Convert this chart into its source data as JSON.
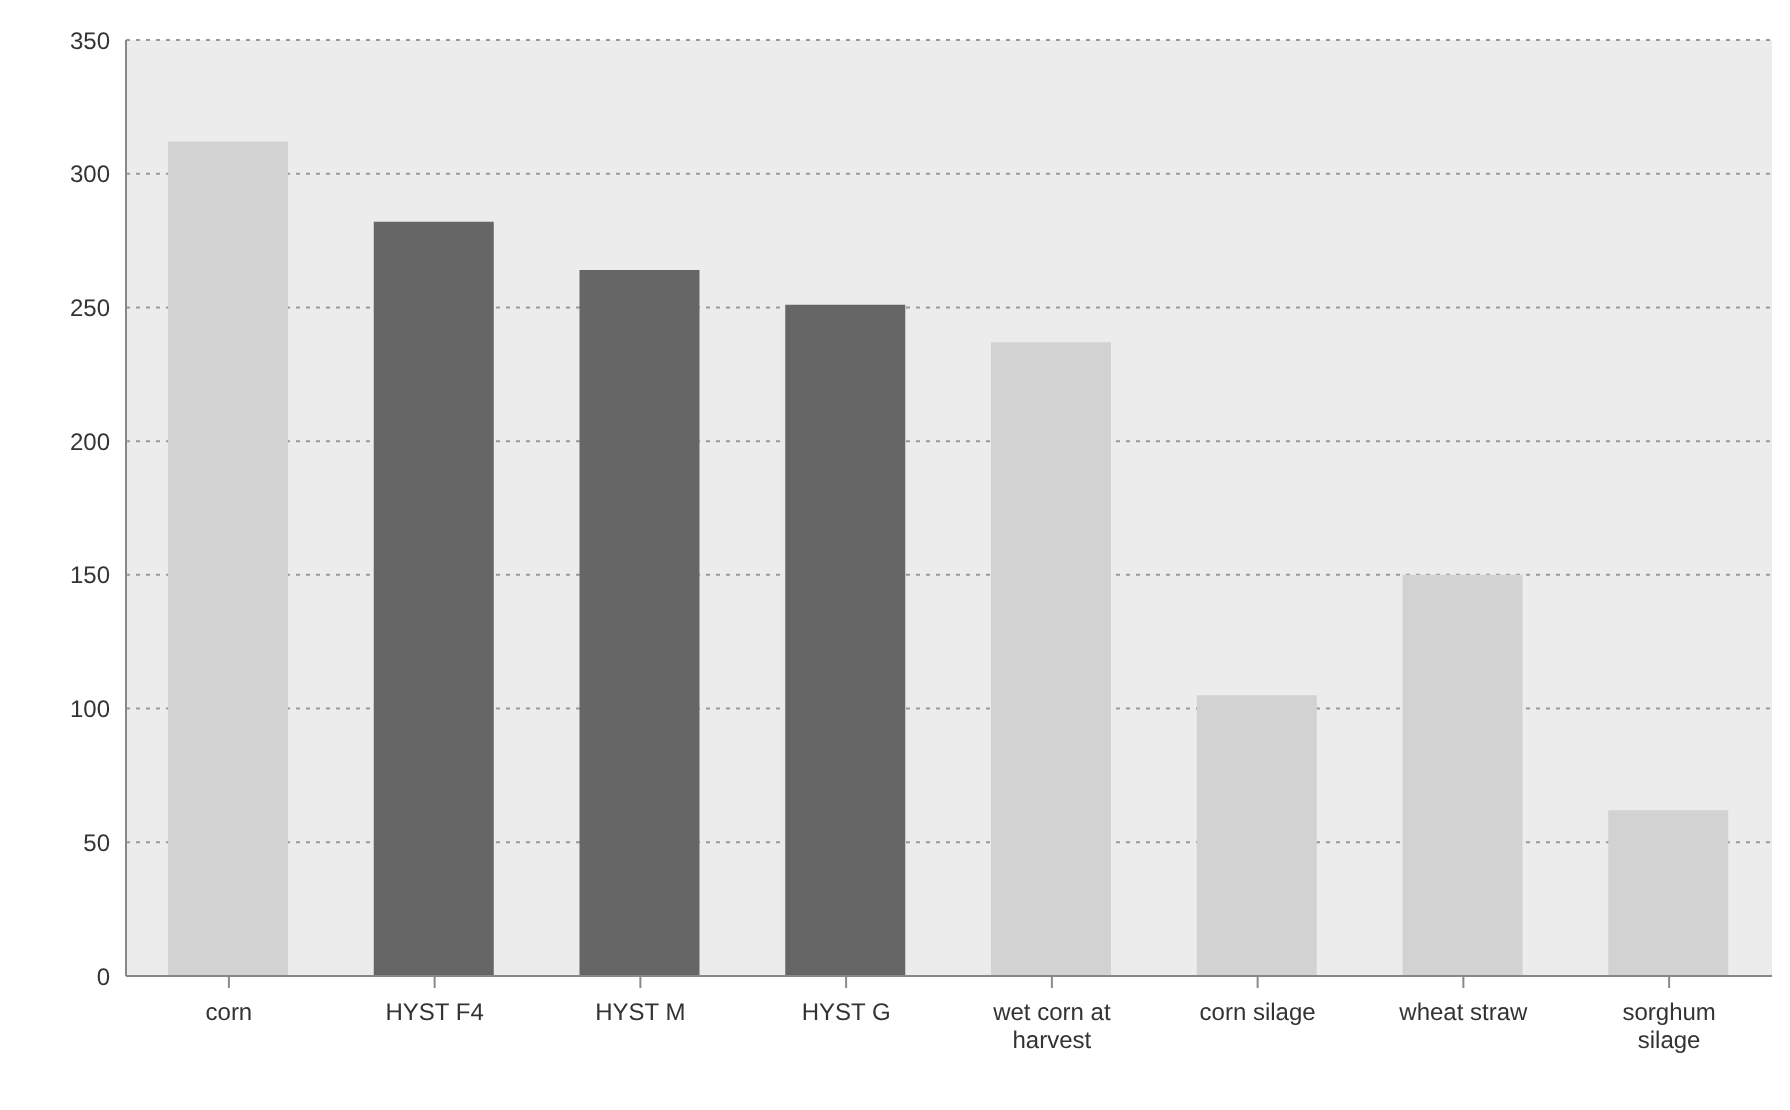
{
  "chart_data": {
    "type": "bar",
    "categories": [
      "corn",
      "HYST F4",
      "HYST M",
      "HYST G",
      "wet corn at harvest",
      "corn silage",
      "wheat straw",
      "sorghum silage"
    ],
    "values": [
      312,
      282,
      264,
      251,
      237,
      105,
      150,
      62
    ],
    "colors": [
      "#d2d2d2",
      "#666666",
      "#666666",
      "#666666",
      "#d2d2d2",
      "#d2d2d2",
      "#d2d2d2",
      "#d2d2d2"
    ],
    "ylim": [
      0,
      350
    ],
    "yticks": [
      0,
      50,
      100,
      150,
      200,
      250,
      300,
      350
    ],
    "grid": "y"
  }
}
